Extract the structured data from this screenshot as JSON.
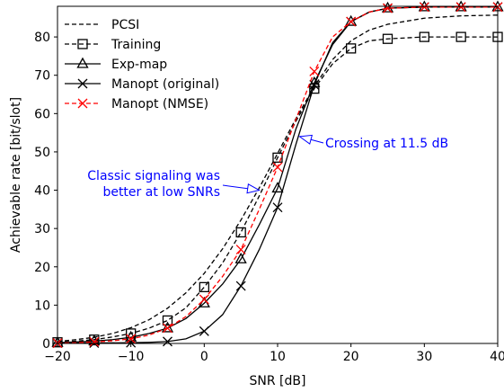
{
  "chart_data": {
    "type": "line",
    "title": "",
    "xlabel": "SNR [dB]",
    "ylabel": "Achievable rate [bit/slot]",
    "xlim": [
      -20,
      40
    ],
    "ylim": [
      0,
      88
    ],
    "xticks": [
      -20,
      -10,
      0,
      10,
      20,
      30,
      40
    ],
    "yticks": [
      0,
      10,
      20,
      30,
      40,
      50,
      60,
      70,
      80
    ],
    "grid": false,
    "legend_position": "top-left",
    "series": [
      {
        "name": "PCSI",
        "color": "#000000",
        "dash": "dashed",
        "marker": "none",
        "x": [
          -20,
          -17.5,
          -15,
          -12.5,
          -10,
          -7.5,
          -5,
          -2.5,
          0,
          2.5,
          5,
          7.5,
          10,
          12.5,
          15,
          17.5,
          20,
          22.5,
          25,
          30,
          35,
          40
        ],
        "y": [
          0.5,
          1.0,
          1.6,
          2.6,
          4.1,
          6.2,
          9.2,
          13.2,
          18.3,
          24.7,
          32.2,
          40.6,
          49.6,
          58.7,
          67.1,
          74.1,
          79.0,
          81.8,
          83.3,
          84.9,
          85.5,
          85.7
        ]
      },
      {
        "name": "Training",
        "color": "#000000",
        "dash": "dashed",
        "marker": "square",
        "x": [
          -20,
          -17.5,
          -15,
          -12.5,
          -10,
          -7.5,
          -5,
          -2.5,
          0,
          2.5,
          5,
          7.5,
          10,
          12.5,
          15,
          17.5,
          20,
          22.5,
          25,
          30,
          35,
          40
        ],
        "y": [
          0.3,
          0.6,
          1.0,
          1.7,
          2.6,
          4.0,
          6.0,
          9.3,
          14.7,
          21.0,
          29.0,
          38.5,
          48.5,
          58.0,
          66.5,
          73.0,
          77.0,
          79.0,
          79.5,
          80.0,
          80.0,
          80.0
        ],
        "markers_at": [
          -20,
          -15,
          -10,
          -5,
          0,
          5,
          10,
          15,
          20,
          25,
          30,
          35,
          40
        ]
      },
      {
        "name": "Exp-map",
        "color": "#000000",
        "dash": "solid",
        "marker": "triangle",
        "x": [
          -20,
          -17.5,
          -15,
          -12.5,
          -10,
          -7.5,
          -5,
          -2.5,
          0,
          2.5,
          5,
          7.5,
          10,
          12.5,
          15,
          17.5,
          20,
          22.5,
          25,
          30,
          35,
          40
        ],
        "y": [
          0.2,
          0.4,
          0.6,
          1.0,
          1.6,
          2.6,
          4.0,
          6.5,
          10.5,
          15.5,
          22.0,
          31.0,
          40.5,
          56.0,
          68.0,
          78.0,
          84.0,
          86.5,
          87.5,
          87.8,
          87.8,
          87.8
        ],
        "markers_at": [
          -20,
          -15,
          -10,
          -5,
          0,
          5,
          10,
          15,
          20,
          25,
          30,
          35,
          40
        ]
      },
      {
        "name": "Manopt (original)",
        "color": "#000000",
        "dash": "solid",
        "marker": "x",
        "x": [
          -20,
          -15,
          -10,
          -7.5,
          -5,
          -2.5,
          0,
          2.5,
          5,
          7.5,
          10,
          12.5,
          15,
          17.5,
          20,
          22.5,
          25,
          30,
          35,
          40
        ],
        "y": [
          0.1,
          0.1,
          0.2,
          0.3,
          0.5,
          1.2,
          3.2,
          7.5,
          15.0,
          24.5,
          35.5,
          52.0,
          67.5,
          78.5,
          84.0,
          86.5,
          87.5,
          87.8,
          87.8,
          87.8
        ],
        "markers_at": [
          -20,
          -15,
          -10,
          -5,
          0,
          5,
          10,
          15,
          20,
          25,
          30,
          35,
          40
        ]
      },
      {
        "name": "Manopt (NMSE)",
        "color": "#ff0000",
        "dash": "dashed",
        "marker": "x",
        "x": [
          -20,
          -17.5,
          -15,
          -12.5,
          -10,
          -7.5,
          -5,
          -2.5,
          0,
          2.5,
          5,
          7.5,
          10,
          12.5,
          15,
          17.5,
          20,
          22.5,
          25,
          30,
          35,
          40
        ],
        "y": [
          0.1,
          0.2,
          0.4,
          0.7,
          1.2,
          2.2,
          4.0,
          7.0,
          11.5,
          17.5,
          24.5,
          35.0,
          46.0,
          58.5,
          71.0,
          80.0,
          84.0,
          86.5,
          87.5,
          87.8,
          87.8,
          87.8
        ],
        "markers_at": [
          -20,
          -15,
          -10,
          -5,
          0,
          5,
          10,
          15,
          20,
          25,
          30,
          35,
          40
        ]
      }
    ],
    "annotations": [
      {
        "text": "Crossing at 11.5 dB",
        "point": [
          13.0,
          54.0
        ],
        "text_anchor_point": [
          13.5,
          52.5
        ],
        "color": "#0000ff"
      },
      {
        "lines": [
          "Classic signaling was",
          "better at low SNRs"
        ],
        "point": [
          7.5,
          40.0
        ],
        "text_anchor_point": [
          4.5,
          41.5
        ],
        "color": "#0000ff"
      }
    ]
  }
}
